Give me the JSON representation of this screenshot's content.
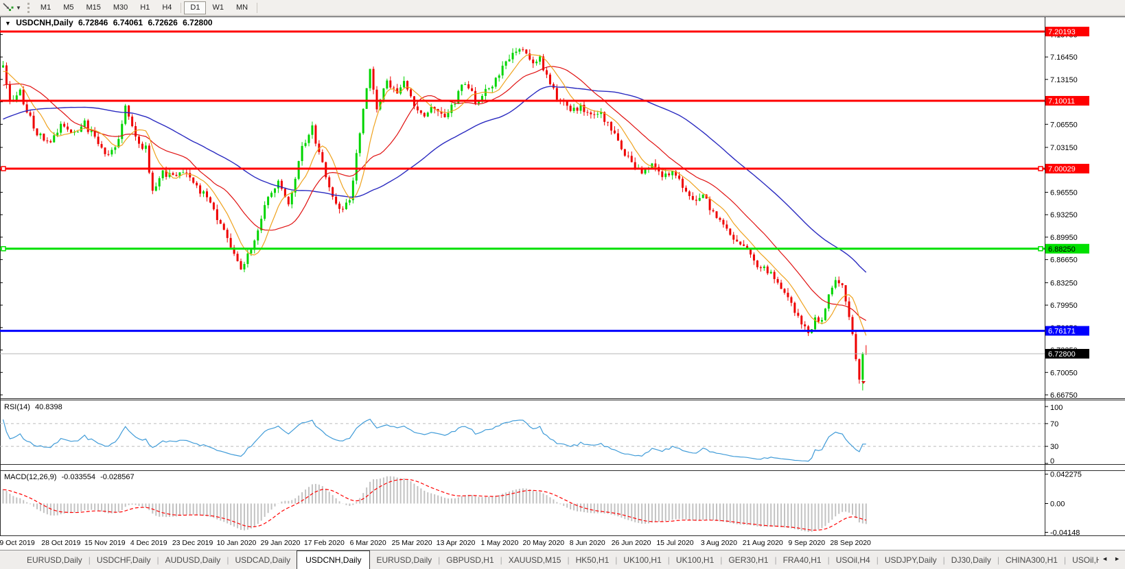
{
  "toolbar": {
    "chart_tool_icon": "chart-cursor",
    "dropdown_caret": "▾",
    "timeframes": [
      "M1",
      "M5",
      "M15",
      "M30",
      "H1",
      "H4",
      "D1",
      "W1",
      "MN"
    ],
    "active_timeframe": "D1"
  },
  "chart": {
    "title_marker": "▼",
    "symbol": "USDCNH,Daily",
    "ohlc": {
      "open": "6.72846",
      "high": "6.74061",
      "low": "6.72626",
      "close": "6.72800"
    },
    "price_axis_ticks": [
      "7.19750",
      "7.16450",
      "7.13150",
      "7.09850",
      "7.06550",
      "7.03150",
      "6.99850",
      "6.96550",
      "6.93250",
      "6.89950",
      "6.86650",
      "6.83250",
      "6.79950",
      "6.76650",
      "6.73350",
      "6.70050",
      "6.66750"
    ],
    "levels": [
      {
        "price": 7.20193,
        "label": "7.20193",
        "color": "#ff0000",
        "text_color": "#ffffff",
        "handles": false
      },
      {
        "price": 7.10011,
        "label": "7.10011",
        "color": "#ff0000",
        "text_color": "#ffffff",
        "handles": false
      },
      {
        "price": 7.00029,
        "label": "7.00029",
        "color": "#ff0000",
        "text_color": "#ffffff",
        "handles": true
      },
      {
        "price": 6.8825,
        "label": "6.88250",
        "color": "#00e000",
        "text_color": "#000000",
        "handles": true
      },
      {
        "price": 6.76171,
        "label": "6.76171",
        "color": "#0000ff",
        "text_color": "#ffffff",
        "handles": false
      }
    ],
    "bid": {
      "price": 6.728,
      "label": "6.72800",
      "line_color": "#b4b4b4",
      "box_color": "#000000",
      "text_color": "#ffffff"
    },
    "candle_up_color": "#00d400",
    "candle_down_color": "#ee0000",
    "ma_fast_color": "#efa21d",
    "ma_mid_color": "#e01010",
    "ma_slow_color": "#2a2ac0"
  },
  "rsi_panel": {
    "name": "RSI(14)",
    "value": "40.8398",
    "axis_labels": [
      "100",
      "70",
      "30",
      "0"
    ],
    "level_lines": [
      70,
      30
    ],
    "line_color": "#3f9bd8"
  },
  "macd_panel": {
    "name": "MACD(12,26,9)",
    "value1": "-0.033554",
    "value2": "-0.028567",
    "axis_labels": [
      "0.042275",
      "0.00",
      "-0.04148"
    ],
    "axis_values": [
      0.042275,
      0.0,
      -0.04148
    ],
    "histogram_color": "#c2c2c2",
    "signal_color": "#ff0000"
  },
  "date_axis": [
    "9 Oct 2019",
    "28 Oct 2019",
    "15 Nov 2019",
    "4 Dec 2019",
    "23 Dec 2019",
    "10 Jan 2020",
    "29 Jan 2020",
    "17 Feb 2020",
    "6 Mar 2020",
    "25 Mar 2020",
    "13 Apr 2020",
    "1 May 2020",
    "20 May 2020",
    "8 Jun 2020",
    "26 Jun 2020",
    "15 Jul 2020",
    "3 Aug 2020",
    "21 Aug 2020",
    "9 Sep 2020",
    "28 Sep 2020"
  ],
  "tabs": {
    "items": [
      {
        "label": "EURUSD,Daily",
        "active": false
      },
      {
        "label": "USDCHF,Daily",
        "active": false
      },
      {
        "label": "AUDUSD,Daily",
        "active": false
      },
      {
        "label": "USDCAD,Daily",
        "active": false
      },
      {
        "label": "USDCNH,Daily",
        "active": true
      },
      {
        "label": "EURUSD,Daily",
        "active": false
      },
      {
        "label": "GBPUSD,H1",
        "active": false
      },
      {
        "label": "XAUUSD,M15",
        "active": false
      },
      {
        "label": "HK50,H1",
        "active": false
      },
      {
        "label": "UK100,H1",
        "active": false
      },
      {
        "label": "UK100,H1",
        "active": false
      },
      {
        "label": "GER30,H1",
        "active": false
      },
      {
        "label": "FRA40,H1",
        "active": false
      },
      {
        "label": "USOil,H4",
        "active": false
      },
      {
        "label": "USDJPY,Daily",
        "active": false
      },
      {
        "label": "DJ30,Daily",
        "active": false
      },
      {
        "label": "CHINA300,H1",
        "active": false
      },
      {
        "label": "USOil,H",
        "active": false
      }
    ],
    "scroll_left": "◄",
    "scroll_right": "►"
  },
  "chart_data": {
    "type": "candlestick",
    "symbol": "USDCNH",
    "timeframe": "Daily",
    "visible_price_range": [
      6.6675,
      7.1975
    ],
    "num_candles": 255,
    "x_labels": [
      "9 Oct 2019",
      "28 Oct 2019",
      "15 Nov 2019",
      "4 Dec 2019",
      "23 Dec 2019",
      "10 Jan 2020",
      "29 Jan 2020",
      "17 Feb 2020",
      "6 Mar 2020",
      "25 Mar 2020",
      "13 Apr 2020",
      "1 May 2020",
      "20 May 2020",
      "8 Jun 2020",
      "26 Jun 2020",
      "15 Jul 2020",
      "3 Aug 2020",
      "21 Aug 2020",
      "9 Sep 2020",
      "28 Sep 2020"
    ],
    "price_path_waypoints": [
      [
        0,
        7.15
      ],
      [
        2,
        7.095
      ],
      [
        5,
        7.112
      ],
      [
        9,
        7.06
      ],
      [
        13,
        7.036
      ],
      [
        17,
        7.064
      ],
      [
        20,
        7.048
      ],
      [
        24,
        7.066
      ],
      [
        28,
        7.038
      ],
      [
        31,
        7.022
      ],
      [
        34,
        7.045
      ],
      [
        36,
        7.088
      ],
      [
        39,
        7.042
      ],
      [
        42,
        7.03
      ],
      [
        44,
        6.962
      ],
      [
        47,
        6.998
      ],
      [
        50,
        6.986
      ],
      [
        53,
        7.0
      ],
      [
        56,
        6.976
      ],
      [
        60,
        6.956
      ],
      [
        63,
        6.93
      ],
      [
        66,
        6.897
      ],
      [
        68,
        6.877
      ],
      [
        70,
        6.856
      ],
      [
        72,
        6.87
      ],
      [
        75,
        6.914
      ],
      [
        78,
        6.958
      ],
      [
        81,
        6.985
      ],
      [
        84,
        6.952
      ],
      [
        88,
        7.028
      ],
      [
        91,
        7.06
      ],
      [
        95,
        6.992
      ],
      [
        99,
        6.936
      ],
      [
        102,
        6.95
      ],
      [
        104,
        7.02
      ],
      [
        106,
        7.088
      ],
      [
        108,
        7.145
      ],
      [
        110,
        7.092
      ],
      [
        113,
        7.124
      ],
      [
        116,
        7.108
      ],
      [
        118,
        7.134
      ],
      [
        121,
        7.096
      ],
      [
        124,
        7.076
      ],
      [
        127,
        7.094
      ],
      [
        130,
        7.08
      ],
      [
        133,
        7.1
      ],
      [
        136,
        7.128
      ],
      [
        139,
        7.1
      ],
      [
        142,
        7.114
      ],
      [
        145,
        7.13
      ],
      [
        148,
        7.154
      ],
      [
        151,
        7.17
      ],
      [
        153,
        7.176
      ],
      [
        156,
        7.156
      ],
      [
        158,
        7.164
      ],
      [
        161,
        7.12
      ],
      [
        164,
        7.1
      ],
      [
        167,
        7.086
      ],
      [
        170,
        7.094
      ],
      [
        173,
        7.076
      ],
      [
        176,
        7.08
      ],
      [
        179,
        7.06
      ],
      [
        182,
        7.032
      ],
      [
        185,
        7.01
      ],
      [
        188,
        6.996
      ],
      [
        191,
        7.005
      ],
      [
        194,
        6.986
      ],
      [
        197,
        6.996
      ],
      [
        200,
        6.976
      ],
      [
        203,
        6.956
      ],
      [
        206,
        6.96
      ],
      [
        209,
        6.936
      ],
      [
        212,
        6.916
      ],
      [
        215,
        6.9
      ],
      [
        218,
        6.886
      ],
      [
        222,
        6.86
      ],
      [
        226,
        6.846
      ],
      [
        229,
        6.826
      ],
      [
        232,
        6.8
      ],
      [
        235,
        6.776
      ],
      [
        237,
        6.756
      ],
      [
        239,
        6.778
      ],
      [
        241,
        6.776
      ],
      [
        243,
        6.814
      ],
      [
        245,
        6.838
      ],
      [
        247,
        6.828
      ],
      [
        249,
        6.782
      ],
      [
        250,
        6.757
      ],
      [
        251,
        6.72
      ],
      [
        252,
        6.69
      ],
      [
        253,
        6.728
      ],
      [
        254,
        6.728
      ]
    ],
    "last_bar_ohlc": [
      6.72846,
      6.74061,
      6.72626,
      6.728
    ],
    "horizontal_levels": [
      7.20193,
      7.10011,
      7.00029,
      6.8825,
      6.76171
    ],
    "current_bid": 6.728,
    "indicators": [
      {
        "name": "SMA",
        "period": 8,
        "color": "#efa21d"
      },
      {
        "name": "SMA",
        "period": 20,
        "color": "#e01010"
      },
      {
        "name": "SMA",
        "period": 55,
        "color": "#2a2ac0"
      },
      {
        "name": "RSI",
        "period": 14,
        "last_value": 40.8398,
        "panel_levels": [
          70,
          30
        ],
        "axis_range": [
          0,
          100
        ]
      },
      {
        "name": "MACD",
        "params": [
          12,
          26,
          9
        ],
        "last_values": [
          -0.033554,
          -0.028567
        ],
        "axis_range": [
          -0.04148,
          0.042275
        ]
      }
    ]
  }
}
